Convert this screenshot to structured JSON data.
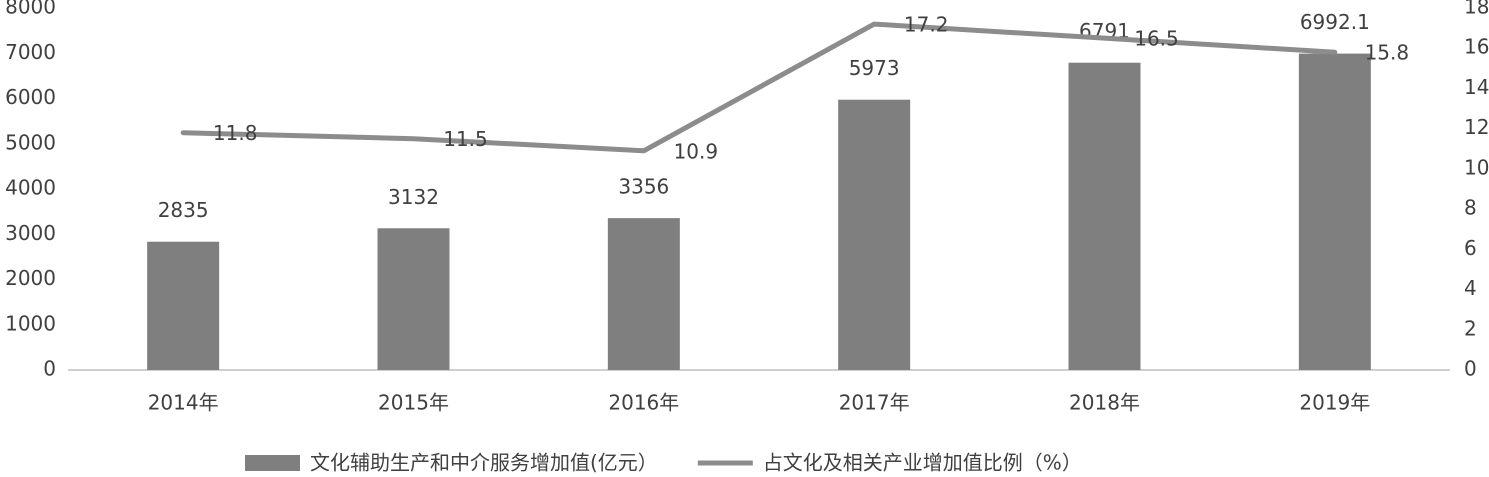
{
  "chart_data": {
    "type": "bar",
    "categories": [
      "2014年",
      "2015年",
      "2016年",
      "2017年",
      "2018年",
      "2019年"
    ],
    "series": [
      {
        "name": "文化辅助生产和中介服务增加值(亿元）",
        "type": "bar",
        "color": "#7f7f7f",
        "values": [
          2835,
          3132,
          3356,
          5973,
          6791,
          6992.1
        ]
      },
      {
        "name": "占文化及相关产业增加值比例（%）",
        "type": "line",
        "axis": "y2",
        "color": "#8c8c8c",
        "values": [
          11.8,
          11.5,
          10.9,
          17.2,
          16.5,
          15.8
        ]
      }
    ],
    "ylim": [
      0,
      8000
    ],
    "yticks": [
      0,
      1000,
      2000,
      3000,
      4000,
      5000,
      6000,
      7000,
      8000
    ],
    "y2lim": [
      0,
      18
    ],
    "y2ticks": [
      0,
      2,
      4,
      6,
      8,
      10,
      12,
      14,
      16,
      18
    ],
    "grid": false,
    "legend": "bottom"
  }
}
